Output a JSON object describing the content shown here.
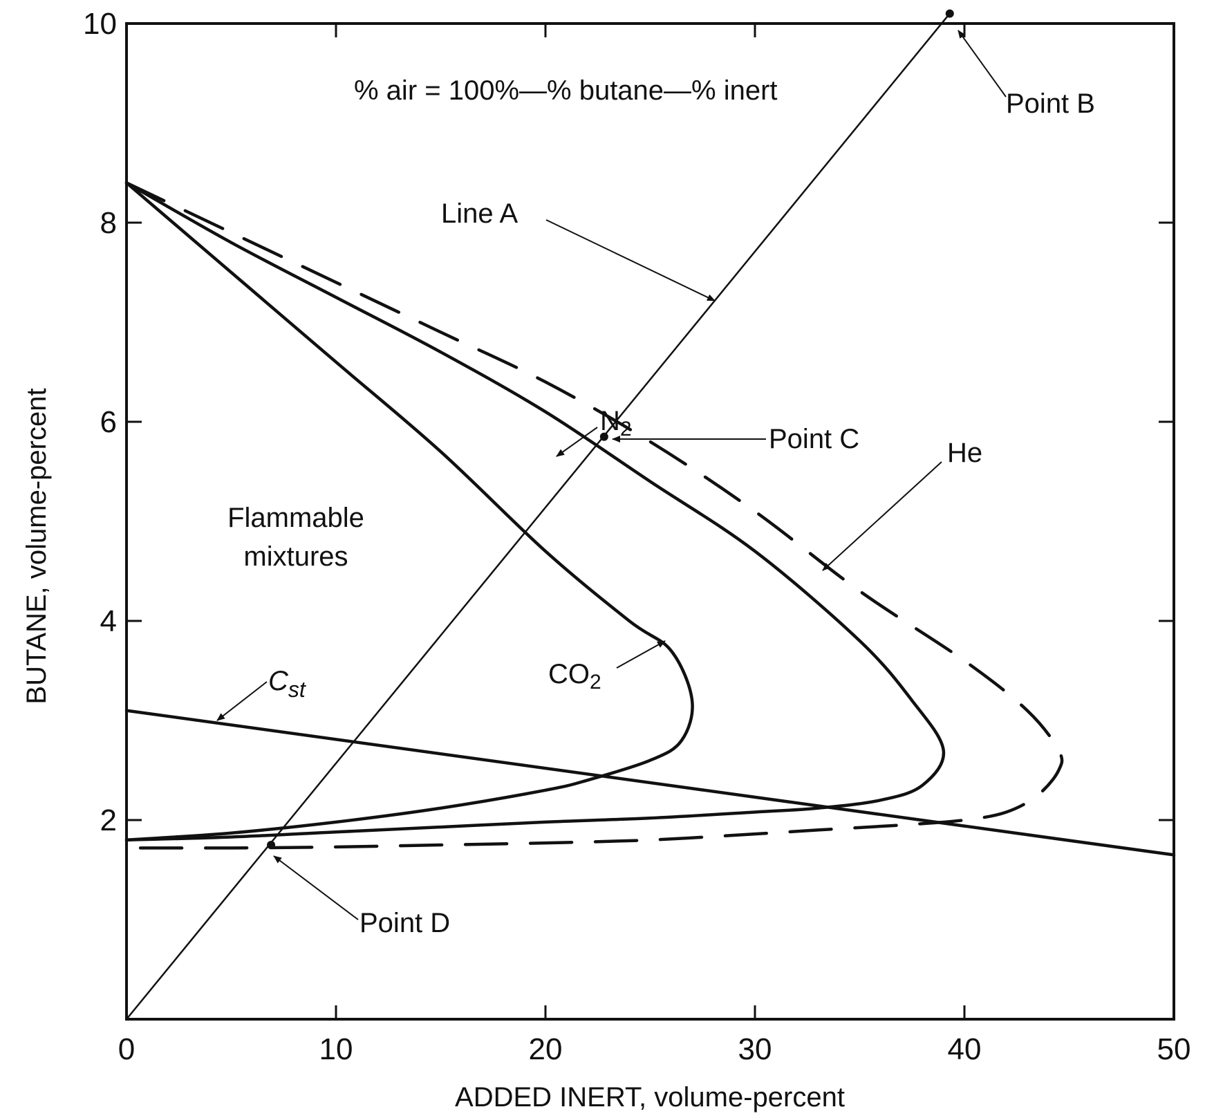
{
  "chart_data": {
    "type": "line",
    "title": "",
    "xlabel": "ADDED INERT, volume-percent",
    "ylabel": "BUTANE, volume-percent",
    "xlim": [
      0,
      50
    ],
    "ylim": [
      0,
      10
    ],
    "x_ticks": [
      0,
      10,
      20,
      30,
      40,
      50
    ],
    "x_tick_labels": [
      "0",
      "10",
      "20",
      "30",
      "40",
      "50"
    ],
    "y_ticks": [
      2,
      4,
      6,
      8,
      10
    ],
    "y_tick_labels": [
      "2",
      "4",
      "6",
      "8",
      "10"
    ],
    "grid": false,
    "equation_text": "% air = 100%—% butane—% inert",
    "region_label": [
      "Flammable",
      "mixtures"
    ],
    "series": [
      {
        "name": "N2",
        "style": "solid",
        "x": [
          0,
          5,
          10,
          15,
          20,
          25,
          30,
          35,
          37.5,
          39,
          38,
          36,
          33,
          30,
          25,
          20,
          15,
          10,
          5,
          0
        ],
        "y": [
          8.4,
          7.8,
          7.25,
          6.7,
          6.1,
          5.4,
          4.7,
          3.8,
          3.2,
          2.7,
          2.35,
          2.2,
          2.12,
          2.08,
          2.02,
          1.98,
          1.93,
          1.88,
          1.83,
          1.8
        ]
      },
      {
        "name": "CO2",
        "style": "solid",
        "x": [
          0,
          5,
          10,
          15,
          20,
          24,
          26,
          27,
          26.5,
          25,
          22,
          20,
          15,
          10,
          5,
          0
        ],
        "y": [
          8.4,
          7.5,
          6.6,
          5.7,
          4.7,
          4.0,
          3.7,
          3.2,
          2.8,
          2.6,
          2.4,
          2.3,
          2.12,
          1.98,
          1.87,
          1.8
        ]
      },
      {
        "name": "He",
        "style": "dashed",
        "x": [
          0,
          5,
          10,
          15,
          20,
          25,
          30,
          35,
          40,
          43,
          44.5,
          44.5,
          43.5,
          42,
          40,
          37,
          33,
          30,
          25,
          20,
          15,
          10,
          5,
          0
        ],
        "y": [
          8.4,
          7.9,
          7.4,
          6.9,
          6.4,
          5.8,
          5.1,
          4.3,
          3.6,
          3.1,
          2.7,
          2.5,
          2.25,
          2.08,
          2.0,
          1.95,
          1.9,
          1.86,
          1.8,
          1.77,
          1.75,
          1.73,
          1.72,
          1.72
        ]
      },
      {
        "name": "C_st",
        "style": "solid",
        "x": [
          0,
          50
        ],
        "y": [
          3.1,
          1.65
        ]
      },
      {
        "name": "Line A",
        "style": "solid-thin",
        "x": [
          0,
          39.3
        ],
        "y": [
          0,
          10.1
        ]
      }
    ],
    "points": [
      {
        "name": "Point B",
        "x": 39.3,
        "y": 10.1
      },
      {
        "name": "Point C",
        "x": 22.8,
        "y": 5.85
      },
      {
        "name": "Point D",
        "x": 6.9,
        "y": 1.75
      }
    ],
    "annotations": [
      {
        "text": "Line A"
      },
      {
        "text": "Point B"
      },
      {
        "text": "Point C"
      },
      {
        "text": "Point D"
      },
      {
        "text": "N2"
      },
      {
        "text": "CO2"
      },
      {
        "text": "He"
      },
      {
        "text": "Cst"
      }
    ]
  }
}
